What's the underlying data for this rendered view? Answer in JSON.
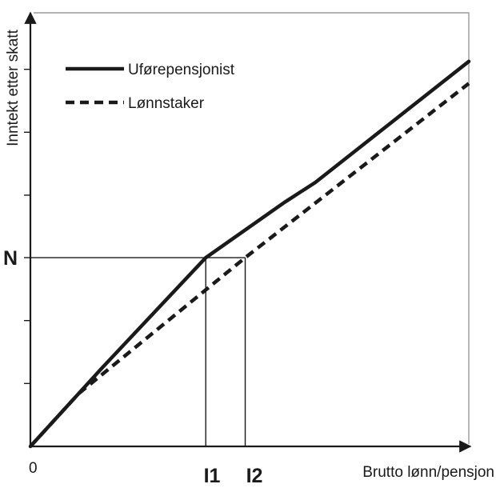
{
  "chart_data": {
    "type": "line",
    "title": "",
    "xlabel": "Brutto lønn/pensjon",
    "ylabel": "Inntekt etter skatt",
    "origin_label": "0",
    "xlim": [
      0,
      10
    ],
    "ylim": [
      0,
      10
    ],
    "grid": false,
    "legend_position": "top-left",
    "y_ticks": [
      1.43,
      2.86,
      4.29,
      5.71,
      7.14,
      8.57
    ],
    "markers": {
      "y": [
        {
          "label": "N",
          "value": 4.29
        }
      ],
      "x": [
        {
          "label": "I1",
          "value": 4.0
        },
        {
          "label": "I2",
          "value": 4.9
        }
      ]
    },
    "series": [
      {
        "name": "Uførepensjonist",
        "style": "solid",
        "color": "#1a1a1a",
        "x": [
          0.0,
          1.65,
          4.0,
          5.8,
          6.5,
          10.0
        ],
        "y": [
          0.0,
          1.8,
          4.29,
          5.55,
          6.0,
          8.75
        ]
      },
      {
        "name": "Lønnstaker",
        "style": "dashed",
        "color": "#1a1a1a",
        "x": [
          0.0,
          1.1,
          4.9,
          10.0
        ],
        "y": [
          0.0,
          1.2,
          4.29,
          8.25
        ]
      }
    ]
  }
}
